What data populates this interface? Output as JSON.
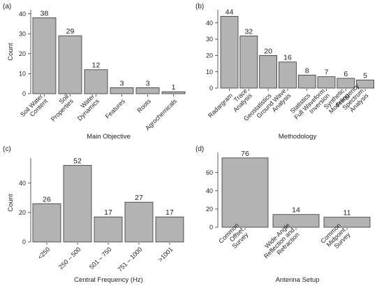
{
  "figure": {
    "background": "#ffffff",
    "bar_fill": "#b3b3b3",
    "bar_stroke": "#333333"
  },
  "chart_data": [
    {
      "panel_label": "(a)",
      "type": "bar",
      "categories": [
        "Soil Water Content",
        "Soil Properties",
        "Water Dynamics",
        "Features",
        "Roots",
        "Agrochemicals"
      ],
      "tick_labels": [
        [
          "Soil Water",
          "Content"
        ],
        [
          "Soil",
          "Properties"
        ],
        [
          "Water",
          "Dynamics"
        ],
        [
          "Features"
        ],
        [
          "Roots"
        ],
        [
          "Agrochemicals"
        ]
      ],
      "values": [
        38,
        29,
        12,
        3,
        3,
        1
      ],
      "data_labels": [
        "38",
        "29",
        "12",
        "3",
        "3",
        "1"
      ],
      "xlabel": "Main Objective",
      "ylabel": "Count",
      "yticks": [
        0,
        10,
        20,
        30,
        40
      ],
      "ylim": [
        0,
        42
      ],
      "grid": false
    },
    {
      "panel_label": "(b)",
      "type": "bar",
      "categories": [
        "Radargram",
        "Trace Analysis",
        "Geostatistics",
        "Ground Wave Analysis",
        "Statistics",
        "Full Waveform Inversion",
        "Synthetic Modeling",
        "Frequency Spectrum Analysis"
      ],
      "tick_labels": [
        [
          "Radargram"
        ],
        [
          "Trace",
          "Analysis"
        ],
        [
          "Geostatistics"
        ],
        [
          "Ground Wave",
          "Analysis"
        ],
        [
          "Statistics"
        ],
        [
          "Full Waveform",
          "Inversion"
        ],
        [
          "Synthetic",
          "Modeling"
        ],
        [
          "Frequency",
          "Spectrum",
          "Analysis"
        ]
      ],
      "values": [
        44,
        32,
        20,
        16,
        8,
        7,
        6,
        5
      ],
      "data_labels": [
        "44",
        "32",
        "20",
        "16",
        "8",
        "7",
        "6",
        "5"
      ],
      "xlabel": "Methodology",
      "ylabel": "",
      "yticks": [
        0,
        10,
        20,
        30,
        40
      ],
      "ylim": [
        0,
        48
      ],
      "grid": false
    },
    {
      "panel_label": "(c)",
      "type": "bar",
      "categories": [
        "<250",
        "250 – 500",
        "501 – 750",
        "751 – 1000",
        ">1001"
      ],
      "tick_labels": [
        [
          "<250"
        ],
        [
          "250 – 500"
        ],
        [
          "501 – 750"
        ],
        [
          "751 – 1000"
        ],
        [
          ">1001"
        ]
      ],
      "values": [
        26,
        52,
        17,
        27,
        17
      ],
      "data_labels": [
        "26",
        "52",
        "17",
        "27",
        "17"
      ],
      "xlabel": "Central Frequency (Hz)",
      "ylabel": "Count",
      "yticks": [
        0,
        20,
        40
      ],
      "ylim": [
        0,
        57
      ],
      "grid": false
    },
    {
      "panel_label": "(d)",
      "type": "bar",
      "categories": [
        "Common Offset Survey",
        "Wide-Angle Reflection and Refraction",
        "Common Midpoint Survey"
      ],
      "tick_labels": [
        [
          "Common",
          "Offset",
          "Survey"
        ],
        [
          "Wide-Angle",
          "Reflection and",
          "Refraction"
        ],
        [
          "Common",
          "Midpoint",
          "Survey"
        ]
      ],
      "values": [
        76,
        14,
        11
      ],
      "data_labels": [
        "76",
        "14",
        "11"
      ],
      "xlabel": "Antenna Setup",
      "ylabel": "",
      "yticks": [
        0,
        20,
        40,
        60
      ],
      "ylim": [
        0,
        82
      ],
      "grid": false
    }
  ]
}
